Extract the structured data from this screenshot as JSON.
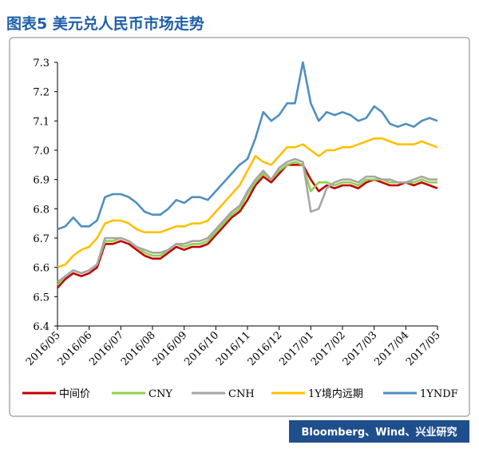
{
  "chart_data": {
    "type": "line",
    "title": "图表5 美元兑人民币市场走势",
    "source": "Bloomberg、Wind、兴业研究",
    "categories": [
      "2016/05",
      null,
      null,
      null,
      "2016/06",
      null,
      null,
      null,
      "2016/07",
      null,
      null,
      null,
      "2016/08",
      null,
      null,
      null,
      "2016/09",
      null,
      null,
      null,
      "2016/10",
      null,
      null,
      null,
      "2016/11",
      null,
      null,
      null,
      "2016/12",
      null,
      null,
      null,
      "2017/01",
      null,
      null,
      null,
      "2017/02",
      null,
      null,
      null,
      "2017/03",
      null,
      null,
      null,
      "2017/04",
      null,
      null,
      null,
      "2017/05"
    ],
    "ylim": [
      6.4,
      7.3
    ],
    "yticks": [
      6.4,
      6.5,
      6.6,
      6.7,
      6.8,
      6.9,
      {
        "value": 7,
        "label": "7.0"
      },
      7.1,
      7.2,
      7.3
    ],
    "legend": "bottom",
    "series": [
      {
        "name": "中间价",
        "color": "#c00000",
        "values": [
          6.53,
          6.56,
          6.58,
          6.57,
          6.58,
          6.6,
          6.68,
          6.68,
          6.69,
          6.68,
          6.66,
          6.64,
          6.63,
          6.63,
          6.65,
          6.67,
          6.66,
          6.67,
          6.67,
          6.68,
          6.71,
          6.74,
          6.77,
          6.79,
          6.83,
          6.88,
          6.91,
          6.89,
          6.92,
          6.95,
          6.95,
          6.95,
          6.9,
          6.86,
          6.88,
          6.87,
          6.88,
          6.88,
          6.87,
          6.89,
          6.9,
          6.89,
          6.88,
          6.88,
          6.89,
          6.88,
          6.89,
          6.88,
          6.87
        ]
      },
      {
        "name": "CNY",
        "color": "#92d050",
        "values": [
          6.54,
          6.57,
          6.59,
          6.58,
          6.59,
          6.61,
          6.69,
          6.69,
          6.7,
          6.69,
          6.67,
          6.65,
          6.64,
          6.64,
          6.66,
          6.68,
          6.67,
          6.68,
          6.68,
          6.69,
          6.72,
          6.75,
          6.78,
          6.8,
          6.85,
          6.89,
          6.92,
          6.9,
          6.93,
          6.95,
          6.96,
          6.95,
          6.86,
          6.89,
          6.89,
          6.88,
          6.89,
          6.89,
          6.88,
          6.9,
          6.9,
          6.9,
          6.89,
          6.89,
          6.89,
          6.89,
          6.9,
          6.89,
          6.89
        ]
      },
      {
        "name": "CNH",
        "color": "#a6a6a6",
        "values": [
          6.55,
          6.57,
          6.59,
          6.58,
          6.59,
          6.61,
          6.7,
          6.7,
          6.7,
          6.69,
          6.67,
          6.66,
          6.65,
          6.65,
          6.66,
          6.68,
          6.68,
          6.69,
          6.69,
          6.7,
          6.73,
          6.76,
          6.79,
          6.81,
          6.86,
          6.9,
          6.93,
          6.9,
          6.94,
          6.96,
          6.97,
          6.96,
          6.79,
          6.8,
          6.87,
          6.89,
          6.9,
          6.9,
          6.89,
          6.91,
          6.91,
          6.9,
          6.9,
          6.89,
          6.89,
          6.9,
          6.91,
          6.9,
          6.9
        ]
      },
      {
        "name": "1Y境内远期",
        "color": "#ffc000",
        "values": [
          6.6,
          6.61,
          6.64,
          6.66,
          6.67,
          6.7,
          6.75,
          6.76,
          6.76,
          6.75,
          6.73,
          6.72,
          6.72,
          6.72,
          6.73,
          6.74,
          6.74,
          6.75,
          6.75,
          6.76,
          6.79,
          6.82,
          6.85,
          6.88,
          6.93,
          6.98,
          6.96,
          6.95,
          6.98,
          7.01,
          7.01,
          7.02,
          7.0,
          6.98,
          7.0,
          7.0,
          7.01,
          7.01,
          7.02,
          7.03,
          7.04,
          7.04,
          7.03,
          7.02,
          7.02,
          7.02,
          7.03,
          7.02,
          7.01
        ]
      },
      {
        "name": "1YNDF",
        "color": "#4f8fc0",
        "values": [
          6.73,
          6.74,
          6.77,
          6.74,
          6.74,
          6.76,
          6.84,
          6.85,
          6.85,
          6.84,
          6.82,
          6.79,
          6.78,
          6.78,
          6.8,
          6.83,
          6.82,
          6.84,
          6.84,
          6.83,
          6.86,
          6.89,
          6.92,
          6.95,
          6.97,
          7.04,
          7.13,
          7.1,
          7.12,
          7.16,
          7.16,
          7.3,
          7.16,
          7.1,
          7.13,
          7.12,
          7.13,
          7.12,
          7.1,
          7.11,
          7.15,
          7.13,
          7.09,
          7.08,
          7.09,
          7.08,
          7.1,
          7.11,
          7.1
        ]
      }
    ]
  }
}
